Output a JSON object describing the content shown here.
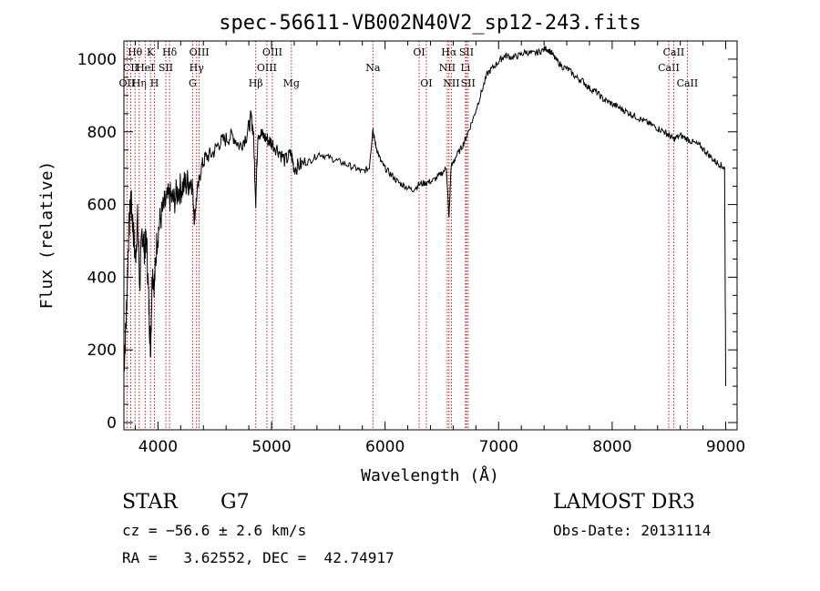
{
  "chart_data": {
    "type": "line",
    "title": "spec-56611-VB002N40V2_sp12-243.fits",
    "xlabel": "Wavelength (Å)",
    "ylabel": "Flux (relative)",
    "xlim": [
      3700,
      9100
    ],
    "ylim": [
      -20,
      1050
    ],
    "xticks": [
      4000,
      5000,
      6000,
      7000,
      8000,
      9000
    ],
    "xtick_labels": [
      "4000",
      "5000",
      "6000",
      "7000",
      "8000",
      "9000"
    ],
    "yticks": [
      0,
      200,
      400,
      600,
      800,
      1000
    ],
    "ytick_labels": [
      "0",
      "200",
      "400",
      "600",
      "800",
      "1000"
    ],
    "spectrum": {
      "x": [
        3700,
        3720,
        3740,
        3760,
        3780,
        3800,
        3820,
        3840,
        3860,
        3880,
        3900,
        3920,
        3934,
        3950,
        3969,
        3990,
        4020,
        4060,
        4102,
        4140,
        4180,
        4220,
        4260,
        4300,
        4320,
        4340,
        4380,
        4420,
        4480,
        4540,
        4600,
        4660,
        4720,
        4780,
        4820,
        4840,
        4861,
        4880,
        4920,
        4960,
        5000,
        5060,
        5120,
        5172,
        5200,
        5260,
        5340,
        5420,
        5500,
        5580,
        5660,
        5740,
        5800,
        5860,
        5893,
        5900,
        5920,
        5960,
        6000,
        6060,
        6120,
        6180,
        6240,
        6300,
        6360,
        6420,
        6480,
        6540,
        6563,
        6580,
        6620,
        6680,
        6720,
        6780,
        6840,
        6900,
        6960,
        7020,
        7060,
        7120,
        7180,
        7240,
        7300,
        7360,
        7420,
        7460,
        7500,
        7560,
        7620,
        7680,
        7740,
        7800,
        7860,
        7920,
        7980,
        8040,
        8100,
        8160,
        8220,
        8280,
        8340,
        8400,
        8460,
        8500,
        8542,
        8600,
        8662,
        8720,
        8780,
        8840,
        8900,
        8950,
        8990,
        9000
      ],
      "y": [
        150,
        280,
        500,
        620,
        540,
        450,
        560,
        380,
        530,
        480,
        500,
        320,
        200,
        420,
        380,
        500,
        560,
        600,
        620,
        610,
        640,
        650,
        660,
        670,
        560,
        620,
        700,
        730,
        740,
        770,
        780,
        790,
        760,
        790,
        840,
        800,
        610,
        800,
        790,
        780,
        770,
        750,
        720,
        740,
        700,
        710,
        720,
        740,
        730,
        720,
        710,
        700,
        690,
        700,
        810,
        790,
        760,
        720,
        700,
        680,
        660,
        650,
        640,
        655,
        660,
        665,
        680,
        700,
        560,
        700,
        730,
        760,
        790,
        840,
        900,
        960,
        980,
        1000,
        1010,
        1005,
        1010,
        1020,
        1015,
        1020,
        1030,
        1020,
        1000,
        980,
        970,
        950,
        940,
        920,
        910,
        890,
        880,
        870,
        860,
        850,
        840,
        830,
        820,
        810,
        800,
        790,
        780,
        790,
        780,
        770,
        760,
        740,
        720,
        710,
        700,
        100
      ]
    },
    "lines": [
      {
        "label": "Hθ",
        "x": 3798,
        "row": 0
      },
      {
        "label": "CII",
        "x": 3760,
        "row": 1
      },
      {
        "label": "OII",
        "x": 3727,
        "row": 2
      },
      {
        "label": "Hη",
        "x": 3835,
        "row": 2
      },
      {
        "label": "HeI",
        "x": 3888,
        "row": 1
      },
      {
        "label": "K",
        "x": 3934,
        "row": 0
      },
      {
        "label": "H",
        "x": 3969,
        "row": 2
      },
      {
        "label": "SII",
        "x": 4069,
        "row": 1
      },
      {
        "label": "Hδ",
        "x": 4102,
        "row": 0
      },
      {
        "label": "G",
        "x": 4305,
        "row": 2
      },
      {
        "label": "Hγ",
        "x": 4340,
        "row": 1
      },
      {
        "label": "OIII",
        "x": 4363,
        "row": 0
      },
      {
        "label": "Hβ",
        "x": 4861,
        "row": 2
      },
      {
        "label": "OIII",
        "x": 4959,
        "row": 1
      },
      {
        "label": "OIII",
        "x": 5007,
        "row": 0
      },
      {
        "label": "Mg",
        "x": 5175,
        "row": 2
      },
      {
        "label": "Na",
        "x": 5893,
        "row": 1
      },
      {
        "label": "OI",
        "x": 6300,
        "row": 0
      },
      {
        "label": "OI",
        "x": 6363,
        "row": 2
      },
      {
        "label": "NII",
        "x": 6548,
        "row": 1
      },
      {
        "label": "Hα",
        "x": 6563,
        "row": 0
      },
      {
        "label": "NII",
        "x": 6584,
        "row": 2
      },
      {
        "label": "Li",
        "x": 6708,
        "row": 1
      },
      {
        "label": "SII",
        "x": 6717,
        "row": 0
      },
      {
        "label": "SII",
        "x": 6731,
        "row": 2
      },
      {
        "label": "CaII",
        "x": 8498,
        "row": 1
      },
      {
        "label": "CaII",
        "x": 8542,
        "row": 0
      },
      {
        "label": "CaII",
        "x": 8662,
        "row": 2
      }
    ]
  },
  "info": {
    "class": "STAR",
    "subclass": "G7",
    "survey": "LAMOST DR3",
    "cz": "cz = −56.6 ± 2.6 km/s",
    "obs_date": "Obs-Date: 20131114",
    "radec": "RA =   3.62552, DEC =  42.74917"
  }
}
